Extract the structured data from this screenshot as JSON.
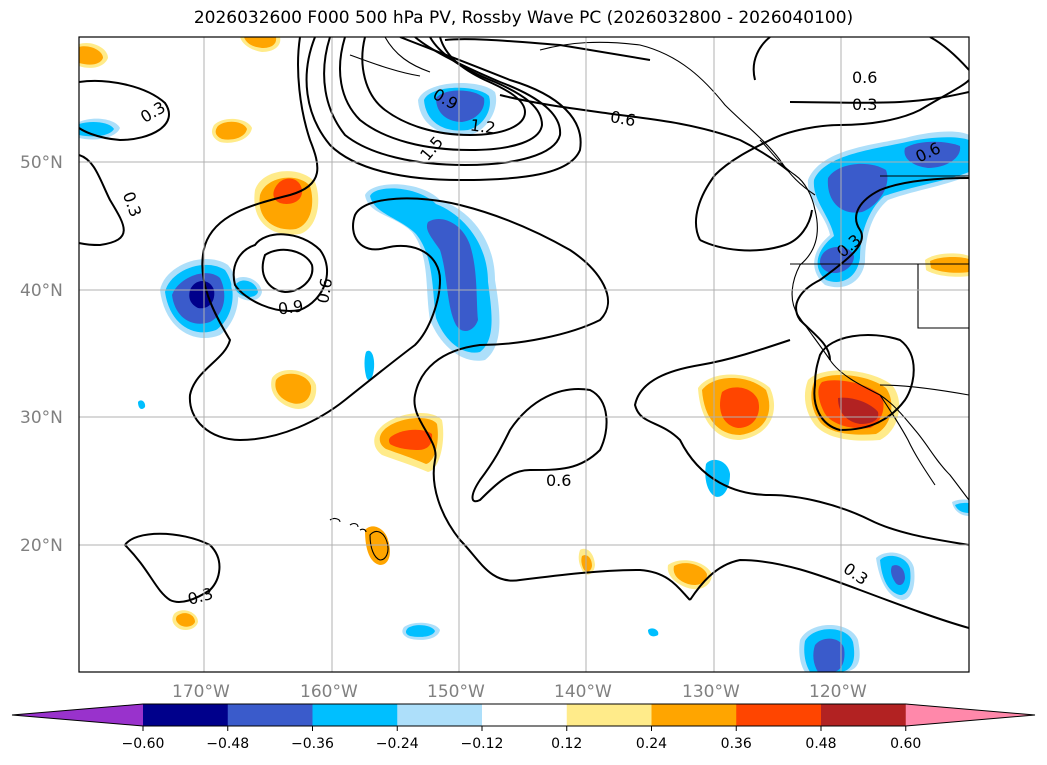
{
  "title": "2026032600 F000 500 hPa PV, Rossby Wave PC (2026032800 - 2026040100)",
  "map": {
    "lat_labels": [
      "50°N",
      "40°N",
      "30°N",
      "20°N"
    ],
    "lon_labels": [
      "170°W",
      "160°W",
      "150°W",
      "140°W",
      "130°W",
      "120°W"
    ]
  },
  "contour_labels": [
    "0.3",
    "0.3",
    "0.3",
    "0.3",
    "0.3",
    "0.3",
    "0.6",
    "0.6",
    "0.6",
    "0.6",
    "0.6",
    "0.9",
    "0.9",
    "1.2",
    "1.5"
  ],
  "colorbar": {
    "ticks": [
      "−0.60",
      "−0.48",
      "−0.36",
      "−0.24",
      "−0.12",
      "0.12",
      "0.24",
      "0.36",
      "0.48",
      "0.60"
    ],
    "colors": [
      "#9932CC",
      "#00008B",
      "#3A5BCB",
      "#00BFFF",
      "#ADDFFA",
      "#FFFFFF",
      "#FFEB8A",
      "#FFA500",
      "#FF4500",
      "#B22222",
      "#FF88AA"
    ]
  }
}
